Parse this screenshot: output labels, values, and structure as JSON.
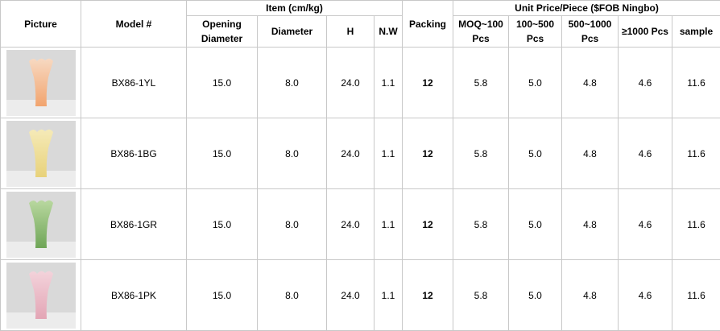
{
  "table": {
    "group_headers": {
      "item": "Item (cm/kg)",
      "price": "Unit Price/Piece ($FOB Ningbo)"
    },
    "columns": [
      "Picture",
      "Model #",
      "Opening Diameter",
      "Diameter",
      "H",
      "N.W",
      "Packing",
      "MOQ~100 Pcs",
      "100~500 Pcs",
      "500~1000 Pcs",
      "≥1000 Pcs",
      "sample"
    ],
    "rows": [
      [
        "BX86-1YL",
        "15.0",
        "8.0",
        "24.0",
        "1.1",
        "12",
        "5.8",
        "5.0",
        "4.8",
        "4.6",
        "11.6"
      ],
      [
        "BX86-1BG",
        "15.0",
        "8.0",
        "24.0",
        "1.1",
        "12",
        "5.8",
        "5.0",
        "4.8",
        "4.6",
        "11.6"
      ],
      [
        "BX86-1GR",
        "15.0",
        "8.0",
        "24.0",
        "1.1",
        "12",
        "5.8",
        "5.0",
        "4.8",
        "4.6",
        "11.6"
      ],
      [
        "BX86-1PK",
        "15.0",
        "8.0",
        "24.0",
        "1.1",
        "12",
        "5.8",
        "5.0",
        "4.8",
        "4.6",
        "11.6"
      ]
    ]
  }
}
